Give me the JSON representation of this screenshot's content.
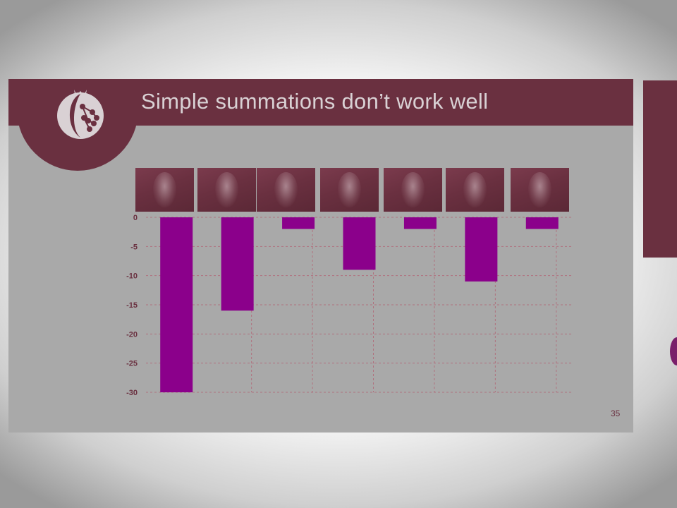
{
  "slide": {
    "title": "Simple summations don’t work well",
    "slide_number": "35"
  },
  "colors": {
    "title_bar": "#6a3040",
    "slide_background": "#a9a9a9",
    "bar_fill": "#8b008b",
    "grid": "#b0727f"
  },
  "chart_data": {
    "type": "bar",
    "categories": [
      "face 1",
      "face 2",
      "face 3",
      "face 4",
      "face 5",
      "face 6",
      "face 7"
    ],
    "values": [
      -30,
      -16,
      -2,
      -9,
      -2,
      -11,
      -2
    ],
    "ylim": [
      -30,
      0
    ],
    "yticks": [
      0,
      -5,
      -10,
      -15,
      -20,
      -25,
      -30
    ],
    "ytick_labels": [
      "0",
      "-5",
      "-10",
      "-15",
      "-20",
      "-25",
      "-30"
    ],
    "grid": true,
    "title": "",
    "xlabel": "",
    "ylabel": ""
  }
}
